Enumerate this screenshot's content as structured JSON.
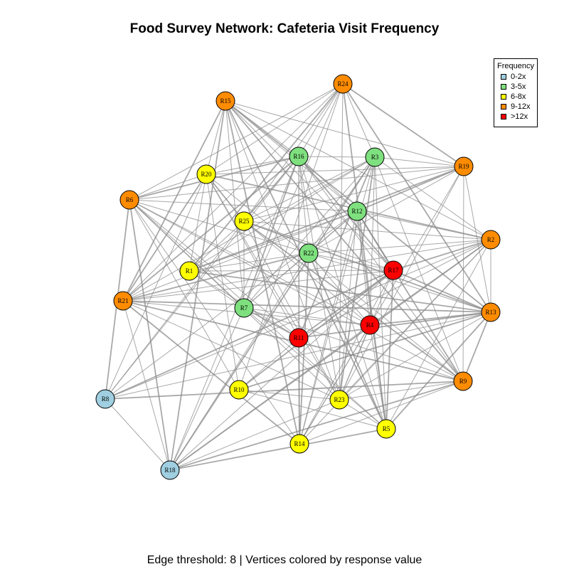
{
  "title": "Food Survey Network: Cafeteria Visit Frequency",
  "caption": "Edge threshold: 8 | Vertices colored by response value",
  "legend": {
    "title": "Frequency",
    "items": [
      {
        "label": "0-2x",
        "color": "#9fcfe0"
      },
      {
        "label": "3-5x",
        "color": "#7ee07e"
      },
      {
        "label": "6-8x",
        "color": "#ffff00"
      },
      {
        "label": "9-12x",
        "color": "#ff8c00"
      },
      {
        "label": ">12x",
        "color": "#ff0000"
      }
    ]
  },
  "style": {
    "edge_color": "#8c8c8c",
    "node_border": "#000000"
  },
  "nodes": [
    {
      "id": "R1",
      "category": "6-8x"
    },
    {
      "id": "R2",
      "category": "9-12x"
    },
    {
      "id": "R3",
      "category": "3-5x"
    },
    {
      "id": "R4",
      "category": ">12x"
    },
    {
      "id": "R5",
      "category": "6-8x"
    },
    {
      "id": "R6",
      "category": "9-12x"
    },
    {
      "id": "R7",
      "category": "3-5x"
    },
    {
      "id": "R8",
      "category": "0-2x"
    },
    {
      "id": "R9",
      "category": "9-12x"
    },
    {
      "id": "R10",
      "category": "6-8x"
    },
    {
      "id": "R11",
      "category": ">12x"
    },
    {
      "id": "R12",
      "category": "3-5x"
    },
    {
      "id": "R13",
      "category": "9-12x"
    },
    {
      "id": "R14",
      "category": "6-8x"
    },
    {
      "id": "R15",
      "category": "9-12x"
    },
    {
      "id": "R16",
      "category": "3-5x"
    },
    {
      "id": "R17",
      "category": ">12x"
    },
    {
      "id": "R18",
      "category": "0-2x"
    },
    {
      "id": "R19",
      "category": "9-12x"
    },
    {
      "id": "R20",
      "category": "6-8x"
    },
    {
      "id": "R21",
      "category": "9-12x"
    },
    {
      "id": "R22",
      "category": "3-5x"
    },
    {
      "id": "R23",
      "category": "6-8x"
    },
    {
      "id": "R24",
      "category": "9-12x"
    },
    {
      "id": "R25",
      "category": "6-8x"
    }
  ]
}
